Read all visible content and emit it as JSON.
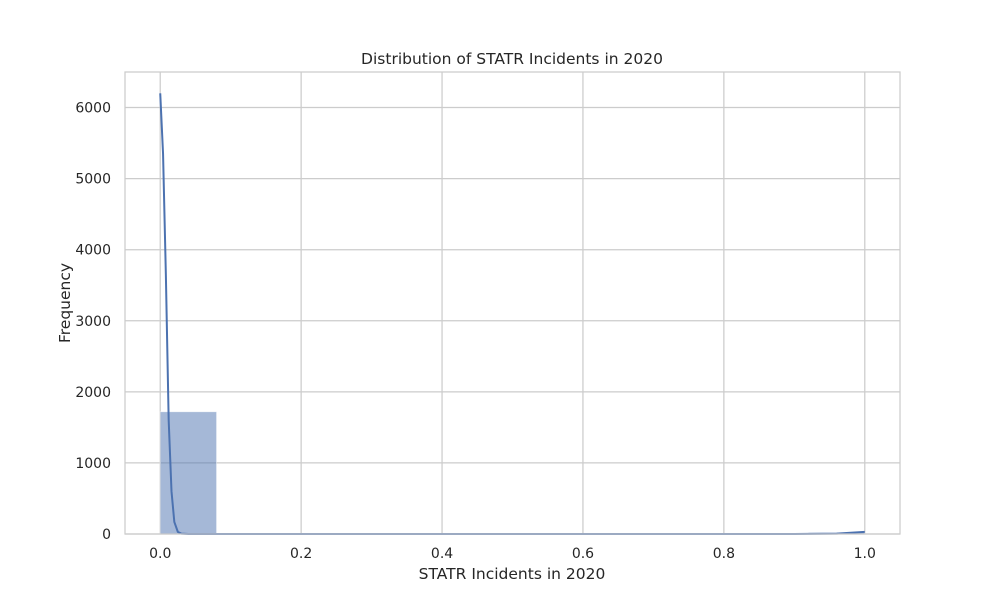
{
  "chart_data": {
    "type": "histogram",
    "title": "Distribution of STATR Incidents in 2020",
    "xlabel": "STATR Incidents in 2020",
    "ylabel": "Frequency",
    "xlim": [
      -0.05,
      1.05
    ],
    "ylim": [
      0,
      6500
    ],
    "xticks": [
      0.0,
      0.2,
      0.4,
      0.6,
      0.8,
      1.0
    ],
    "xtick_labels": [
      "0.0",
      "0.2",
      "0.4",
      "0.6",
      "0.8",
      "1.0"
    ],
    "yticks": [
      0,
      1000,
      2000,
      3000,
      4000,
      5000,
      6000
    ],
    "ytick_labels": [
      "0",
      "1000",
      "2000",
      "3000",
      "4000",
      "5000",
      "6000"
    ],
    "grid": true,
    "bins": [
      {
        "x0": 0.0,
        "x1": 0.08,
        "count": 1720
      },
      {
        "x0": 0.92,
        "x1": 1.0,
        "count": 20
      }
    ],
    "kde": {
      "x": [
        0.0,
        0.004,
        0.008,
        0.012,
        0.016,
        0.02,
        0.025,
        0.03,
        0.04,
        0.1,
        0.3,
        0.5,
        0.7,
        0.9,
        0.96,
        1.0
      ],
      "y": [
        6200,
        5350,
        3650,
        1600,
        600,
        170,
        30,
        5,
        0,
        0,
        0,
        0,
        0,
        0,
        5,
        30
      ]
    },
    "colors": {
      "bar": "#4c72b0",
      "bar_opacity": 0.5,
      "line": "#4c72b0",
      "grid": "#cccccc",
      "text": "#262626"
    }
  }
}
